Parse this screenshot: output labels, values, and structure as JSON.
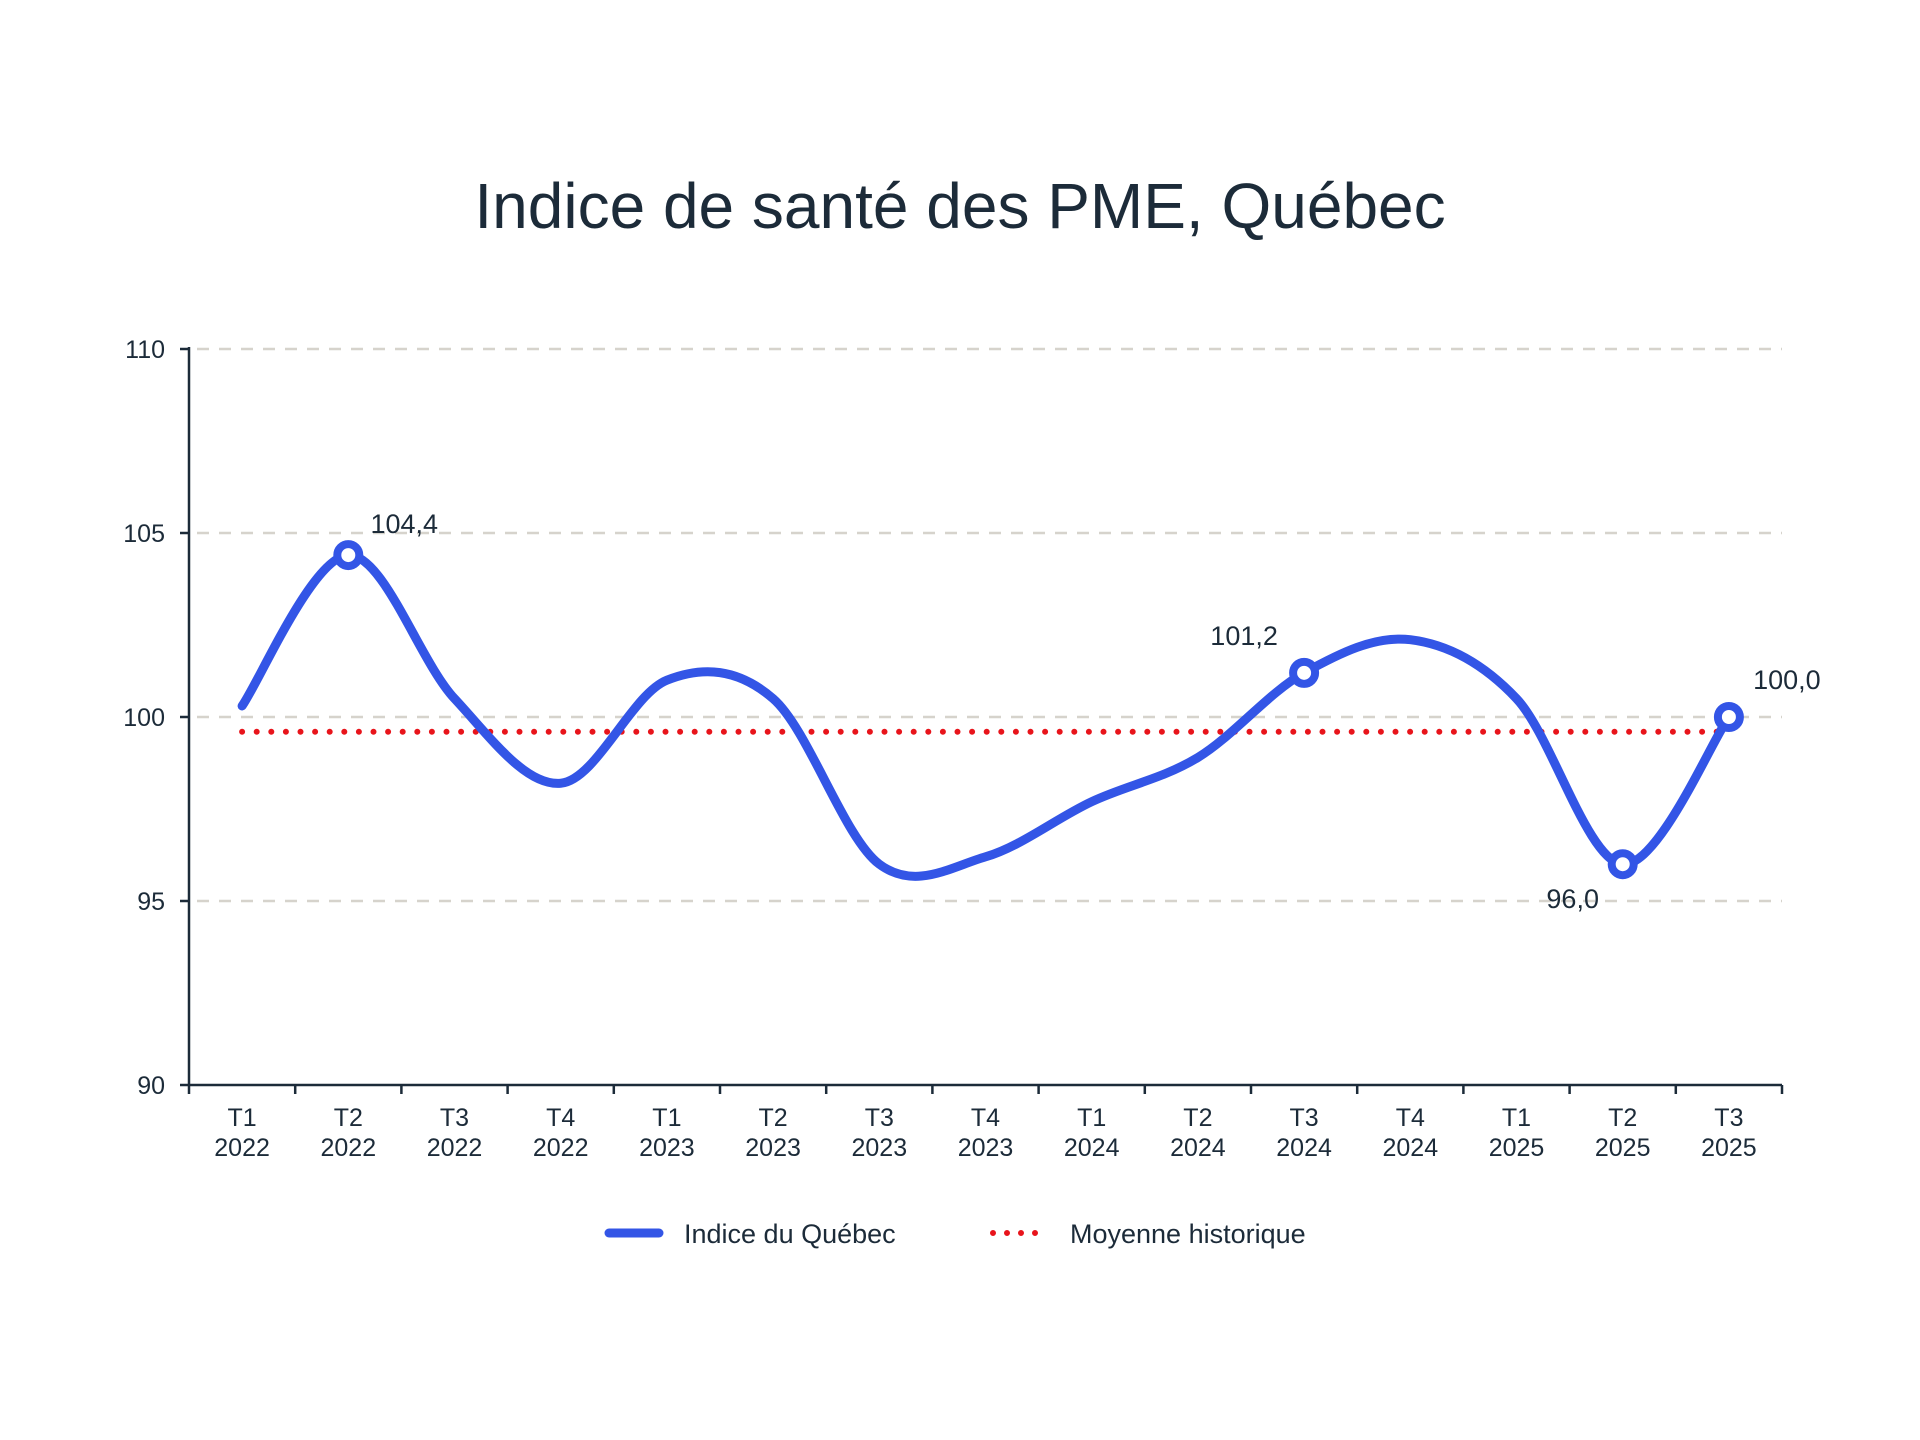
{
  "chart_data": {
    "type": "line",
    "title": "Indice de santé des PME, Québec",
    "xlabel": "",
    "ylabel": "",
    "ylim": [
      90,
      110
    ],
    "yticks": [
      "90",
      "95",
      "100",
      "105",
      "110"
    ],
    "ytick_values": [
      90,
      95,
      100,
      105,
      110
    ],
    "grid": "horizontal dashed",
    "legend_position": "bottom",
    "categories": [
      [
        "T1",
        "2022"
      ],
      [
        "T2",
        "2022"
      ],
      [
        "T3",
        "2022"
      ],
      [
        "T4",
        "2022"
      ],
      [
        "T1",
        "2023"
      ],
      [
        "T2",
        "2023"
      ],
      [
        "T3",
        "2023"
      ],
      [
        "T4",
        "2023"
      ],
      [
        "T1",
        "2024"
      ],
      [
        "T2",
        "2024"
      ],
      [
        "T3",
        "2024"
      ],
      [
        "T4",
        "2024"
      ],
      [
        "T1",
        "2025"
      ],
      [
        "T2",
        "2025"
      ],
      [
        "T3",
        "2025"
      ]
    ],
    "series": [
      {
        "name": "Indice du Québec",
        "color": "#3355e6",
        "style": "solid-smooth",
        "values": [
          100.3,
          104.4,
          100.5,
          98.2,
          101.0,
          100.5,
          96.0,
          96.2,
          97.7,
          98.9,
          101.2,
          102.1,
          100.5,
          96.0,
          100.0
        ],
        "labeled_points": [
          {
            "index": 1,
            "label": "104,4"
          },
          {
            "index": 10,
            "label": "101,2"
          },
          {
            "index": 13,
            "label": "96,0"
          },
          {
            "index": 14,
            "label": "100,0"
          }
        ]
      },
      {
        "name": "Moyenne historique",
        "color": "#e8141b",
        "style": "dotted",
        "values": [
          99.6,
          99.6,
          99.6,
          99.6,
          99.6,
          99.6,
          99.6,
          99.6,
          99.6,
          99.6,
          99.6,
          99.6,
          99.6,
          99.6,
          99.6
        ]
      }
    ]
  }
}
